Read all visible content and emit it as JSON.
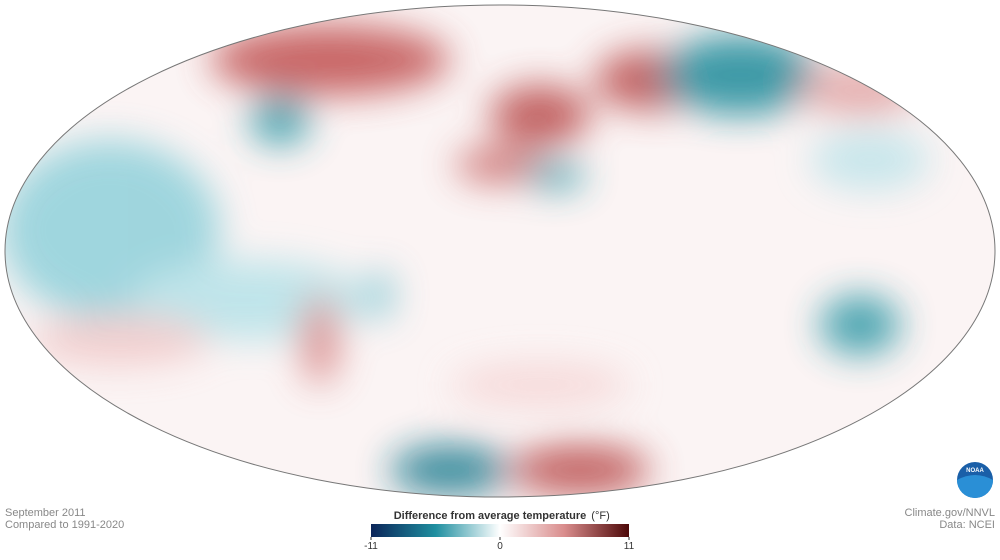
{
  "map": {
    "period": "September 2011",
    "baseline": "Compared to 1991-2020",
    "credit": "Climate.gov/NNVL",
    "source": "Data: NCEI",
    "logo": "NOAA"
  },
  "legend": {
    "title": "Difference from average temperature",
    "unit": "(°F)",
    "lim": [
      -11,
      11
    ],
    "ticks": [
      -11,
      0,
      11
    ],
    "colors": [
      "#0b2559",
      "#1f8fa0",
      "#ffffff",
      "#d98c8c",
      "#4d0808"
    ]
  }
}
